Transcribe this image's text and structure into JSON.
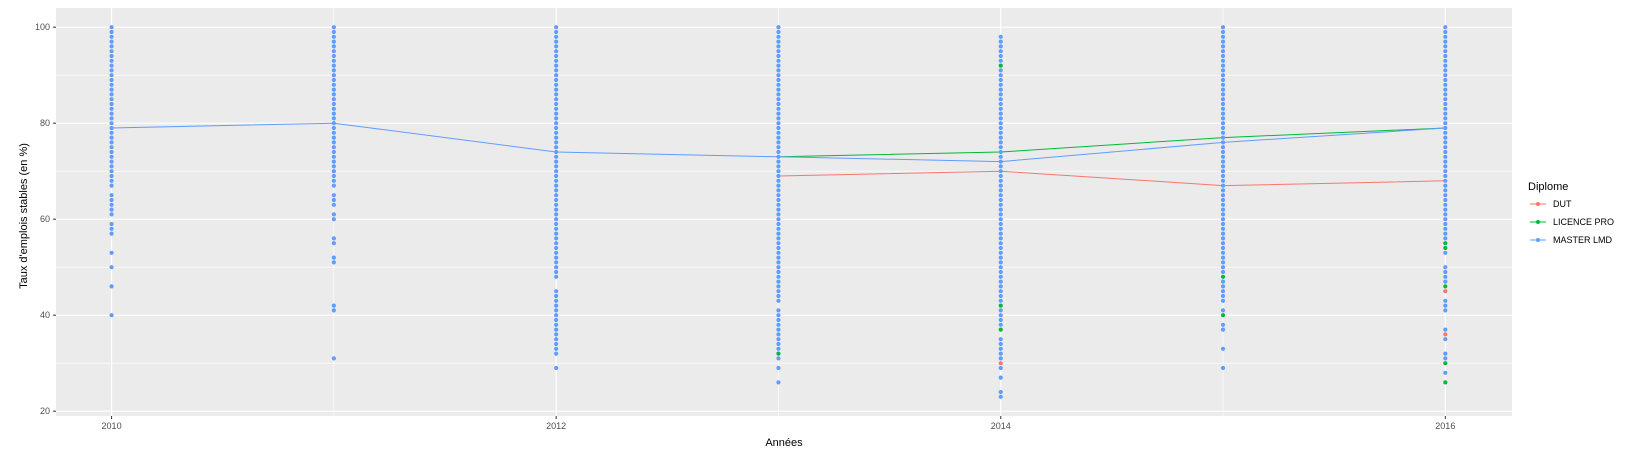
{
  "chart_data": {
    "type": "scatter",
    "xlabel": "Années",
    "ylabel": "Taux d'emplois stables (en %)",
    "x_ticks": [
      2010,
      2012,
      2014,
      2016
    ],
    "y_ticks": [
      20,
      40,
      60,
      80,
      100
    ],
    "xlim": [
      2009.75,
      2016.3
    ],
    "ylim": [
      19,
      104
    ],
    "grid": true,
    "legend": {
      "title": "Diplome",
      "position": "right",
      "entries": [
        "DUT",
        "LICENCE PRO",
        "MASTER LMD"
      ]
    },
    "colors": {
      "DUT": "#F8766D",
      "LICENCE PRO": "#00BA38",
      "MASTER LMD": "#619CFF",
      "panel_bg": "#EBEBEB",
      "grid": "#FFFFFF"
    },
    "lines": [
      {
        "name": "DUT",
        "x": [
          2013,
          2014,
          2015,
          2016
        ],
        "y": [
          69,
          70,
          67,
          68
        ]
      },
      {
        "name": "LICENCE PRO",
        "x": [
          2013,
          2014,
          2015,
          2016
        ],
        "y": [
          73,
          74,
          77,
          79
        ]
      },
      {
        "name": "MASTER LMD",
        "x": [
          2010,
          2011,
          2012,
          2013,
          2014,
          2015,
          2016
        ],
        "y": [
          79,
          80,
          74,
          73,
          72,
          76,
          79
        ]
      }
    ],
    "points": [
      {
        "name": "MASTER LMD",
        "x": 2010,
        "y": [
          100,
          99,
          98,
          97,
          96,
          95,
          94,
          93,
          92,
          91,
          90,
          89,
          88,
          87,
          86,
          85,
          84,
          83,
          82,
          81,
          80,
          79,
          78,
          77,
          76,
          75,
          74,
          73,
          72,
          71,
          70,
          69,
          68,
          67,
          65,
          64,
          63,
          62,
          61,
          59,
          58,
          57,
          53,
          50,
          46,
          40
        ]
      },
      {
        "name": "MASTER LMD",
        "x": 2011,
        "y": [
          100,
          99,
          98,
          97,
          96,
          95,
          94,
          93,
          92,
          91,
          90,
          89,
          88,
          87,
          86,
          85,
          84,
          83,
          82,
          81,
          80,
          79,
          78,
          77,
          76,
          75,
          74,
          73,
          72,
          71,
          70,
          69,
          68,
          67,
          65,
          64,
          63,
          61,
          60,
          56,
          55,
          52,
          51,
          42,
          41,
          31
        ]
      },
      {
        "name": "MASTER LMD",
        "x": 2012,
        "y": [
          100,
          99,
          98,
          97,
          96,
          95,
          94,
          93,
          92,
          91,
          90,
          89,
          88,
          87,
          86,
          85,
          84,
          83,
          82,
          81,
          80,
          79,
          78,
          77,
          76,
          75,
          74,
          73,
          72,
          71,
          70,
          69,
          68,
          67,
          66,
          65,
          64,
          63,
          62,
          61,
          60,
          59,
          58,
          57,
          56,
          55,
          54,
          53,
          52,
          51,
          50,
          49,
          48,
          45,
          44,
          43,
          42,
          41,
          40,
          39,
          38,
          37,
          36,
          35,
          34,
          33,
          32,
          29
        ]
      },
      {
        "name": "MASTER LMD",
        "x": 2013,
        "y": [
          100,
          99,
          98,
          97,
          96,
          95,
          94,
          93,
          92,
          91,
          90,
          89,
          88,
          87,
          86,
          85,
          84,
          83,
          82,
          81,
          80,
          79,
          78,
          77,
          76,
          75,
          74,
          73,
          72,
          71,
          70,
          69,
          68,
          67,
          66,
          65,
          64,
          63,
          62,
          61,
          60,
          59,
          58,
          57,
          56,
          55,
          54,
          53,
          52,
          51,
          50,
          49,
          48,
          47,
          46,
          45,
          44,
          43,
          41,
          40,
          39,
          38,
          37,
          36,
          35,
          34,
          33,
          31,
          29,
          26
        ]
      },
      {
        "name": "LICENCE PRO",
        "x": 2013,
        "y": [
          32
        ]
      },
      {
        "name": "MASTER LMD",
        "x": 2014,
        "y": [
          98,
          97,
          96,
          95,
          94,
          93,
          91,
          90,
          89,
          88,
          87,
          86,
          85,
          84,
          83,
          82,
          81,
          80,
          79,
          78,
          77,
          76,
          75,
          74,
          73,
          72,
          71,
          70,
          69,
          68,
          67,
          66,
          65,
          64,
          63,
          62,
          61,
          60,
          59,
          58,
          57,
          56,
          55,
          54,
          53,
          52,
          51,
          50,
          49,
          48,
          47,
          46,
          45,
          44,
          43,
          41,
          40,
          39,
          38,
          35,
          34,
          33,
          32,
          31,
          29,
          27,
          24,
          23
        ]
      },
      {
        "name": "LICENCE PRO",
        "x": 2014,
        "y": [
          92,
          42,
          37
        ]
      },
      {
        "name": "DUT",
        "x": 2014,
        "y": [
          30
        ]
      },
      {
        "name": "MASTER LMD",
        "x": 2015,
        "y": [
          100,
          99,
          98,
          97,
          96,
          95,
          94,
          93,
          92,
          91,
          90,
          89,
          88,
          87,
          86,
          85,
          84,
          83,
          82,
          81,
          80,
          79,
          78,
          77,
          76,
          75,
          74,
          73,
          72,
          71,
          70,
          69,
          68,
          67,
          66,
          65,
          64,
          63,
          62,
          61,
          60,
          59,
          58,
          57,
          56,
          55,
          54,
          53,
          52,
          51,
          50,
          49,
          47,
          46,
          45,
          44,
          43,
          41,
          38,
          37,
          33,
          29
        ]
      },
      {
        "name": "LICENCE PRO",
        "x": 2015,
        "y": [
          48,
          40
        ]
      },
      {
        "name": "MASTER LMD",
        "x": 2016,
        "y": [
          100,
          99,
          98,
          97,
          96,
          95,
          94,
          93,
          92,
          91,
          90,
          89,
          88,
          87,
          86,
          85,
          84,
          83,
          82,
          81,
          80,
          79,
          78,
          77,
          76,
          75,
          74,
          73,
          72,
          71,
          70,
          69,
          68,
          67,
          66,
          65,
          64,
          63,
          62,
          61,
          60,
          59,
          58,
          57,
          56,
          53,
          50,
          49,
          48,
          47,
          43,
          42,
          41,
          37,
          35,
          32,
          31,
          28
        ]
      },
      {
        "name": "LICENCE PRO",
        "x": 2016,
        "y": [
          55,
          54,
          46,
          30,
          26
        ]
      },
      {
        "name": "DUT",
        "x": 2016,
        "y": [
          45,
          36
        ]
      }
    ]
  }
}
